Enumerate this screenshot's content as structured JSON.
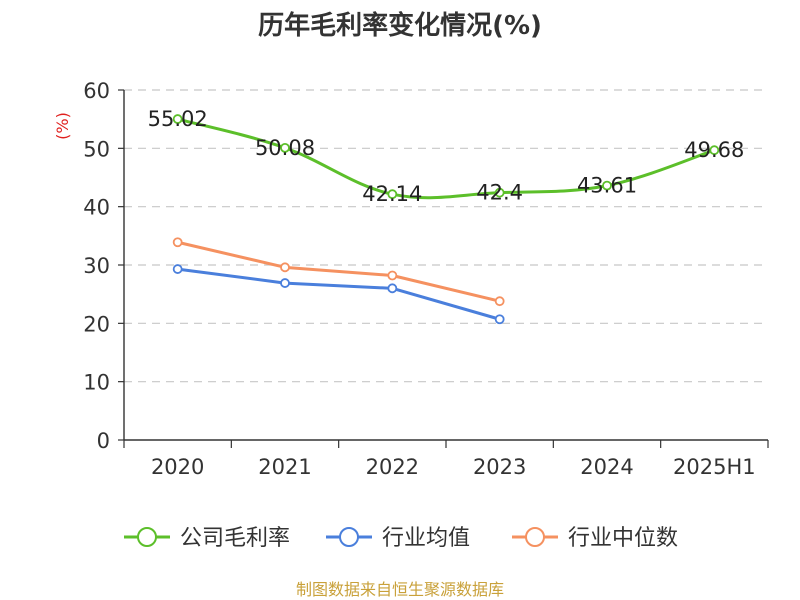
{
  "chart_data": {
    "type": "line",
    "title": "历年毛利率变化情况(%)",
    "ylabel": "(%)",
    "xlabel": "",
    "categories": [
      "2020",
      "2021",
      "2022",
      "2023",
      "2024",
      "2025H1"
    ],
    "ylim": [
      0,
      60
    ],
    "yticks": [
      0,
      10,
      20,
      30,
      40,
      50,
      60
    ],
    "grid": true,
    "legend_position": "bottom",
    "series": [
      {
        "name": "公司毛利率",
        "color": "#5cbf2a",
        "values": [
          55.02,
          50.08,
          42.14,
          42.4,
          43.61,
          49.68
        ],
        "labels": [
          "55.02",
          "50.08",
          "42.14",
          "42.4",
          "43.61",
          "49.68"
        ],
        "smooth": true
      },
      {
        "name": "行业均值",
        "color": "#4a7fdc",
        "values": [
          29.3,
          26.9,
          26.0,
          20.7,
          null,
          null
        ],
        "labels": [],
        "smooth": false
      },
      {
        "name": "行业中位数",
        "color": "#f59160",
        "values": [
          33.9,
          29.6,
          28.2,
          23.8,
          null,
          null
        ],
        "labels": [],
        "smooth": false
      }
    ]
  },
  "source_text": "制图数据来自恒生聚源数据库"
}
